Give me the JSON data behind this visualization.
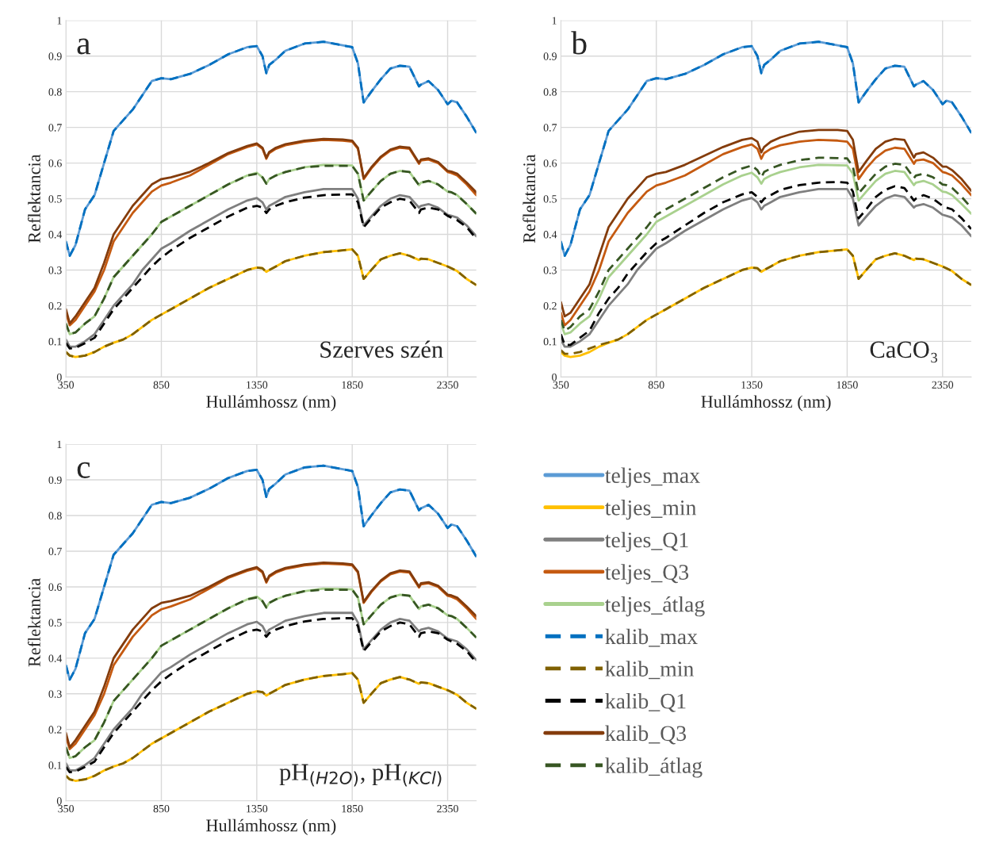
{
  "chart_data": [
    {
      "type": "line",
      "xlabel": "Hullámhossz (nm)",
      "ylabel": "Reflektancia",
      "annotations": [
        "a",
        "Szerves szén"
      ],
      "xlim": [
        350,
        2500
      ],
      "ylim": [
        0,
        1
      ],
      "xticks": [
        350,
        850,
        1350,
        1850,
        2350
      ],
      "yticks": [
        0,
        0.1,
        0.2,
        0.3,
        0.4,
        0.5,
        0.6,
        0.7,
        0.8,
        0.9,
        1
      ],
      "grid": true,
      "x": [
        350,
        370,
        400,
        450,
        500,
        550,
        600,
        650,
        700,
        750,
        800,
        850,
        900,
        1000,
        1100,
        1200,
        1300,
        1350,
        1380,
        1400,
        1415,
        1450,
        1500,
        1600,
        1700,
        1800,
        1850,
        1880,
        1910,
        1950,
        2000,
        2050,
        2100,
        2150,
        2200,
        2210,
        2250,
        2300,
        2350,
        2370,
        2400,
        2450,
        2500
      ],
      "series": [
        {
          "color": "#5b9bd5",
          "line_style": "solid",
          "values": [
            0.38,
            0.34,
            0.37,
            0.47,
            0.51,
            0.6,
            0.69,
            0.72,
            0.75,
            0.79,
            0.83,
            0.838,
            0.835,
            0.85,
            0.875,
            0.905,
            0.925,
            0.928,
            0.9,
            0.852,
            0.875,
            0.89,
            0.915,
            0.935,
            0.94,
            0.93,
            0.925,
            0.88,
            0.77,
            0.8,
            0.835,
            0.865,
            0.873,
            0.87,
            0.815,
            0.82,
            0.83,
            0.805,
            0.765,
            0.775,
            0.77,
            0.73,
            0.685
          ]
        },
        {
          "color": "#ffc000",
          "line_style": "solid",
          "values": [
            0.07,
            0.06,
            0.056,
            0.06,
            0.07,
            0.085,
            0.096,
            0.105,
            0.12,
            0.14,
            0.16,
            0.175,
            0.19,
            0.22,
            0.25,
            0.275,
            0.3,
            0.307,
            0.305,
            0.295,
            0.3,
            0.31,
            0.325,
            0.34,
            0.35,
            0.355,
            0.358,
            0.34,
            0.275,
            0.3,
            0.33,
            0.34,
            0.347,
            0.34,
            0.328,
            0.332,
            0.33,
            0.32,
            0.31,
            0.305,
            0.297,
            0.275,
            0.258
          ]
        },
        {
          "color": "#7f7f7f",
          "line_style": "solid",
          "values": [
            0.105,
            0.085,
            0.085,
            0.1,
            0.12,
            0.16,
            0.2,
            0.23,
            0.26,
            0.3,
            0.33,
            0.36,
            0.375,
            0.41,
            0.44,
            0.47,
            0.495,
            0.502,
            0.49,
            0.47,
            0.48,
            0.49,
            0.505,
            0.518,
            0.527,
            0.527,
            0.527,
            0.5,
            0.425,
            0.45,
            0.48,
            0.5,
            0.51,
            0.505,
            0.475,
            0.48,
            0.485,
            0.475,
            0.455,
            0.452,
            0.447,
            0.425,
            0.395
          ]
        },
        {
          "color": "#c55a11",
          "line_style": "solid",
          "values": [
            0.18,
            0.145,
            0.16,
            0.2,
            0.24,
            0.3,
            0.38,
            0.42,
            0.46,
            0.49,
            0.52,
            0.537,
            0.545,
            0.565,
            0.595,
            0.625,
            0.645,
            0.652,
            0.64,
            0.612,
            0.628,
            0.64,
            0.65,
            0.66,
            0.665,
            0.663,
            0.66,
            0.64,
            0.555,
            0.585,
            0.615,
            0.635,
            0.643,
            0.64,
            0.598,
            0.607,
            0.61,
            0.6,
            0.575,
            0.572,
            0.565,
            0.54,
            0.51
          ]
        },
        {
          "color": "#a9d18e",
          "line_style": "solid",
          "values": [
            0.15,
            0.12,
            0.125,
            0.15,
            0.17,
            0.22,
            0.28,
            0.31,
            0.34,
            0.37,
            0.4,
            0.435,
            0.45,
            0.48,
            0.51,
            0.54,
            0.565,
            0.573,
            0.56,
            0.542,
            0.555,
            0.565,
            0.575,
            0.588,
            0.595,
            0.594,
            0.593,
            0.57,
            0.495,
            0.52,
            0.55,
            0.57,
            0.578,
            0.575,
            0.538,
            0.545,
            0.55,
            0.54,
            0.52,
            0.518,
            0.51,
            0.485,
            0.458
          ]
        },
        {
          "color": "#0070c0",
          "line_style": "dashed",
          "values": [
            0.38,
            0.34,
            0.37,
            0.47,
            0.51,
            0.6,
            0.69,
            0.72,
            0.75,
            0.79,
            0.83,
            0.838,
            0.835,
            0.85,
            0.875,
            0.905,
            0.925,
            0.928,
            0.9,
            0.852,
            0.875,
            0.89,
            0.915,
            0.935,
            0.94,
            0.93,
            0.925,
            0.88,
            0.77,
            0.8,
            0.835,
            0.865,
            0.873,
            0.87,
            0.815,
            0.82,
            0.83,
            0.805,
            0.765,
            0.775,
            0.77,
            0.73,
            0.685
          ]
        },
        {
          "color": "#7f6000",
          "line_style": "dashed",
          "values": [
            0.07,
            0.06,
            0.056,
            0.06,
            0.07,
            0.085,
            0.096,
            0.105,
            0.12,
            0.14,
            0.16,
            0.175,
            0.19,
            0.22,
            0.25,
            0.275,
            0.3,
            0.307,
            0.305,
            0.295,
            0.3,
            0.31,
            0.325,
            0.34,
            0.35,
            0.355,
            0.358,
            0.34,
            0.275,
            0.3,
            0.33,
            0.34,
            0.347,
            0.34,
            0.328,
            0.332,
            0.33,
            0.32,
            0.31,
            0.305,
            0.297,
            0.275,
            0.258
          ]
        },
        {
          "color": "#000000",
          "line_style": "dashed",
          "values": [
            0.095,
            0.08,
            0.082,
            0.095,
            0.11,
            0.15,
            0.19,
            0.22,
            0.25,
            0.28,
            0.31,
            0.335,
            0.355,
            0.39,
            0.42,
            0.45,
            0.475,
            0.48,
            0.475,
            0.46,
            0.47,
            0.48,
            0.49,
            0.503,
            0.51,
            0.512,
            0.512,
            0.49,
            0.42,
            0.445,
            0.475,
            0.49,
            0.5,
            0.495,
            0.46,
            0.47,
            0.475,
            0.47,
            0.452,
            0.447,
            0.44,
            0.42,
            0.388
          ]
        },
        {
          "color": "#843c0c",
          "line_style": "solid",
          "values": [
            0.19,
            0.15,
            0.17,
            0.21,
            0.25,
            0.32,
            0.4,
            0.44,
            0.48,
            0.51,
            0.54,
            0.555,
            0.56,
            0.575,
            0.6,
            0.628,
            0.648,
            0.655,
            0.643,
            0.615,
            0.631,
            0.643,
            0.653,
            0.663,
            0.668,
            0.666,
            0.663,
            0.643,
            0.558,
            0.588,
            0.618,
            0.638,
            0.646,
            0.643,
            0.601,
            0.61,
            0.613,
            0.603,
            0.578,
            0.576,
            0.57,
            0.545,
            0.518
          ]
        },
        {
          "color": "#375623",
          "line_style": "dashed",
          "values": [
            0.15,
            0.12,
            0.125,
            0.15,
            0.17,
            0.22,
            0.28,
            0.31,
            0.34,
            0.37,
            0.4,
            0.435,
            0.45,
            0.48,
            0.51,
            0.54,
            0.565,
            0.57,
            0.56,
            0.542,
            0.555,
            0.565,
            0.575,
            0.588,
            0.592,
            0.592,
            0.592,
            0.57,
            0.495,
            0.52,
            0.55,
            0.57,
            0.578,
            0.575,
            0.538,
            0.545,
            0.55,
            0.54,
            0.52,
            0.518,
            0.51,
            0.485,
            0.458
          ]
        }
      ]
    },
    {
      "type": "line",
      "xlabel": "Hullámhossz (nm)",
      "ylabel": "Reflektancia",
      "annotations": [
        "b",
        "CaCO₃"
      ],
      "xlim": [
        350,
        2500
      ],
      "ylim": [
        0,
        1
      ],
      "xticks": [
        350,
        850,
        1350,
        1850,
        2350
      ],
      "yticks": [
        0,
        0.1,
        0.2,
        0.3,
        0.4,
        0.5,
        0.6,
        0.7,
        0.8,
        0.9,
        1
      ],
      "grid": true,
      "x": [
        350,
        370,
        400,
        450,
        500,
        550,
        600,
        650,
        700,
        750,
        800,
        850,
        900,
        1000,
        1100,
        1200,
        1300,
        1350,
        1380,
        1400,
        1415,
        1450,
        1500,
        1600,
        1700,
        1800,
        1850,
        1880,
        1910,
        1950,
        2000,
        2050,
        2100,
        2150,
        2200,
        2210,
        2250,
        2300,
        2350,
        2370,
        2400,
        2450,
        2500
      ],
      "series": [
        {
          "color": "#5b9bd5",
          "line_style": "solid",
          "values": [
            0.38,
            0.34,
            0.37,
            0.47,
            0.51,
            0.6,
            0.69,
            0.72,
            0.75,
            0.79,
            0.83,
            0.838,
            0.835,
            0.85,
            0.875,
            0.905,
            0.925,
            0.928,
            0.9,
            0.852,
            0.875,
            0.89,
            0.915,
            0.935,
            0.94,
            0.93,
            0.925,
            0.88,
            0.77,
            0.8,
            0.835,
            0.865,
            0.873,
            0.87,
            0.815,
            0.82,
            0.83,
            0.805,
            0.765,
            0.775,
            0.77,
            0.73,
            0.685
          ]
        },
        {
          "color": "#ffc000",
          "line_style": "solid",
          "values": [
            0.07,
            0.06,
            0.056,
            0.06,
            0.07,
            0.085,
            0.096,
            0.105,
            0.12,
            0.14,
            0.16,
            0.175,
            0.19,
            0.22,
            0.25,
            0.275,
            0.3,
            0.307,
            0.305,
            0.295,
            0.3,
            0.31,
            0.325,
            0.34,
            0.35,
            0.355,
            0.358,
            0.34,
            0.275,
            0.3,
            0.33,
            0.34,
            0.347,
            0.34,
            0.328,
            0.332,
            0.33,
            0.32,
            0.31,
            0.305,
            0.297,
            0.275,
            0.258
          ]
        },
        {
          "color": "#7f7f7f",
          "line_style": "solid",
          "values": [
            0.105,
            0.085,
            0.085,
            0.1,
            0.12,
            0.16,
            0.2,
            0.23,
            0.26,
            0.3,
            0.33,
            0.36,
            0.375,
            0.41,
            0.44,
            0.47,
            0.495,
            0.502,
            0.49,
            0.47,
            0.48,
            0.49,
            0.505,
            0.518,
            0.527,
            0.527,
            0.527,
            0.5,
            0.425,
            0.45,
            0.48,
            0.5,
            0.51,
            0.505,
            0.475,
            0.48,
            0.485,
            0.475,
            0.455,
            0.452,
            0.447,
            0.425,
            0.395
          ]
        },
        {
          "color": "#c55a11",
          "line_style": "solid",
          "values": [
            0.18,
            0.145,
            0.16,
            0.2,
            0.24,
            0.3,
            0.38,
            0.42,
            0.46,
            0.49,
            0.52,
            0.537,
            0.545,
            0.565,
            0.595,
            0.625,
            0.645,
            0.652,
            0.64,
            0.612,
            0.628,
            0.64,
            0.65,
            0.66,
            0.665,
            0.663,
            0.66,
            0.64,
            0.555,
            0.585,
            0.615,
            0.635,
            0.643,
            0.64,
            0.598,
            0.607,
            0.61,
            0.6,
            0.575,
            0.572,
            0.565,
            0.54,
            0.51
          ]
        },
        {
          "color": "#a9d18e",
          "line_style": "solid",
          "values": [
            0.15,
            0.12,
            0.125,
            0.15,
            0.17,
            0.22,
            0.28,
            0.31,
            0.34,
            0.37,
            0.4,
            0.435,
            0.45,
            0.48,
            0.51,
            0.54,
            0.565,
            0.573,
            0.56,
            0.542,
            0.555,
            0.565,
            0.575,
            0.588,
            0.595,
            0.594,
            0.593,
            0.57,
            0.495,
            0.52,
            0.55,
            0.57,
            0.578,
            0.575,
            0.538,
            0.545,
            0.55,
            0.54,
            0.52,
            0.518,
            0.51,
            0.485,
            0.458
          ]
        },
        {
          "color": "#0070c0",
          "line_style": "dashed",
          "values": [
            0.38,
            0.34,
            0.37,
            0.47,
            0.51,
            0.6,
            0.69,
            0.72,
            0.75,
            0.79,
            0.83,
            0.838,
            0.835,
            0.85,
            0.875,
            0.905,
            0.925,
            0.928,
            0.9,
            0.852,
            0.875,
            0.89,
            0.915,
            0.935,
            0.94,
            0.93,
            0.925,
            0.88,
            0.77,
            0.8,
            0.835,
            0.865,
            0.873,
            0.87,
            0.815,
            0.82,
            0.83,
            0.805,
            0.765,
            0.775,
            0.77,
            0.73,
            0.685
          ]
        },
        {
          "color": "#7f6000",
          "line_style": "dashed",
          "values": [
            0.075,
            0.065,
            0.065,
            0.07,
            0.08,
            0.09,
            0.097,
            0.105,
            0.12,
            0.14,
            0.16,
            0.175,
            0.19,
            0.22,
            0.25,
            0.275,
            0.3,
            0.307,
            0.305,
            0.295,
            0.3,
            0.31,
            0.325,
            0.34,
            0.35,
            0.355,
            0.358,
            0.34,
            0.275,
            0.3,
            0.33,
            0.34,
            0.347,
            0.34,
            0.328,
            0.332,
            0.33,
            0.32,
            0.31,
            0.305,
            0.297,
            0.275,
            0.258
          ]
        },
        {
          "color": "#000000",
          "line_style": "dashed",
          "values": [
            0.12,
            0.09,
            0.09,
            0.11,
            0.13,
            0.18,
            0.22,
            0.25,
            0.29,
            0.32,
            0.35,
            0.375,
            0.39,
            0.425,
            0.46,
            0.49,
            0.512,
            0.518,
            0.505,
            0.49,
            0.5,
            0.51,
            0.525,
            0.538,
            0.545,
            0.547,
            0.545,
            0.52,
            0.445,
            0.47,
            0.505,
            0.525,
            0.535,
            0.53,
            0.495,
            0.5,
            0.51,
            0.5,
            0.48,
            0.475,
            0.47,
            0.445,
            0.415
          ]
        },
        {
          "color": "#843c0c",
          "line_style": "solid",
          "values": [
            0.21,
            0.17,
            0.18,
            0.22,
            0.26,
            0.34,
            0.42,
            0.46,
            0.5,
            0.53,
            0.56,
            0.57,
            0.575,
            0.595,
            0.62,
            0.645,
            0.665,
            0.67,
            0.66,
            0.63,
            0.645,
            0.66,
            0.672,
            0.688,
            0.693,
            0.693,
            0.69,
            0.665,
            0.575,
            0.605,
            0.64,
            0.66,
            0.668,
            0.665,
            0.615,
            0.625,
            0.63,
            0.615,
            0.59,
            0.59,
            0.58,
            0.555,
            0.522
          ]
        },
        {
          "color": "#375623",
          "line_style": "dashed",
          "values": [
            0.16,
            0.13,
            0.14,
            0.17,
            0.19,
            0.24,
            0.3,
            0.33,
            0.36,
            0.39,
            0.42,
            0.455,
            0.47,
            0.5,
            0.53,
            0.56,
            0.585,
            0.593,
            0.58,
            0.56,
            0.575,
            0.585,
            0.595,
            0.608,
            0.615,
            0.614,
            0.613,
            0.59,
            0.515,
            0.54,
            0.57,
            0.59,
            0.598,
            0.595,
            0.558,
            0.565,
            0.57,
            0.56,
            0.54,
            0.538,
            0.53,
            0.505,
            0.475
          ]
        }
      ]
    },
    {
      "type": "line",
      "xlabel": "Hullámhossz (nm)",
      "ylabel": "Reflektancia",
      "annotations": [
        "c",
        "pH$_{(H2O)}$, pH$_{(KCl)}$"
      ],
      "xlim": [
        350,
        2500
      ],
      "ylim": [
        0,
        1
      ],
      "xticks": [
        350,
        850,
        1350,
        1850,
        2350
      ],
      "yticks": [
        0,
        0.1,
        0.2,
        0.3,
        0.4,
        0.5,
        0.6,
        0.7,
        0.8,
        0.9,
        1
      ],
      "grid": true,
      "legend": "right",
      "x": [
        350,
        370,
        400,
        450,
        500,
        550,
        600,
        650,
        700,
        750,
        800,
        850,
        900,
        1000,
        1100,
        1200,
        1300,
        1350,
        1380,
        1400,
        1415,
        1450,
        1500,
        1600,
        1700,
        1800,
        1850,
        1880,
        1910,
        1950,
        2000,
        2050,
        2100,
        2150,
        2200,
        2210,
        2250,
        2300,
        2350,
        2370,
        2400,
        2450,
        2500
      ],
      "series": [
        {
          "name": "teljes_max",
          "color": "#5b9bd5",
          "line_style": "solid",
          "values": [
            0.38,
            0.34,
            0.37,
            0.47,
            0.51,
            0.6,
            0.69,
            0.72,
            0.75,
            0.79,
            0.83,
            0.838,
            0.835,
            0.85,
            0.875,
            0.905,
            0.925,
            0.928,
            0.9,
            0.852,
            0.875,
            0.89,
            0.915,
            0.935,
            0.94,
            0.93,
            0.925,
            0.88,
            0.77,
            0.8,
            0.835,
            0.865,
            0.873,
            0.87,
            0.815,
            0.82,
            0.83,
            0.805,
            0.765,
            0.775,
            0.77,
            0.73,
            0.685
          ]
        },
        {
          "name": "teljes_min",
          "color": "#ffc000",
          "line_style": "solid",
          "values": [
            0.07,
            0.06,
            0.056,
            0.06,
            0.07,
            0.085,
            0.096,
            0.105,
            0.12,
            0.14,
            0.16,
            0.175,
            0.19,
            0.22,
            0.25,
            0.275,
            0.3,
            0.307,
            0.305,
            0.295,
            0.3,
            0.31,
            0.325,
            0.34,
            0.35,
            0.355,
            0.358,
            0.34,
            0.275,
            0.3,
            0.33,
            0.34,
            0.347,
            0.34,
            0.328,
            0.332,
            0.33,
            0.32,
            0.31,
            0.305,
            0.297,
            0.275,
            0.258
          ]
        },
        {
          "name": "teljes_Q1",
          "color": "#7f7f7f",
          "line_style": "solid",
          "values": [
            0.105,
            0.085,
            0.085,
            0.1,
            0.12,
            0.16,
            0.2,
            0.23,
            0.26,
            0.3,
            0.33,
            0.36,
            0.375,
            0.41,
            0.44,
            0.47,
            0.495,
            0.502,
            0.49,
            0.47,
            0.48,
            0.49,
            0.505,
            0.518,
            0.527,
            0.527,
            0.527,
            0.5,
            0.425,
            0.45,
            0.48,
            0.5,
            0.51,
            0.505,
            0.475,
            0.48,
            0.485,
            0.475,
            0.455,
            0.452,
            0.447,
            0.425,
            0.395
          ]
        },
        {
          "name": "teljes_Q3",
          "color": "#c55a11",
          "line_style": "solid",
          "values": [
            0.18,
            0.145,
            0.16,
            0.2,
            0.24,
            0.3,
            0.38,
            0.42,
            0.46,
            0.49,
            0.52,
            0.537,
            0.545,
            0.565,
            0.595,
            0.625,
            0.645,
            0.652,
            0.64,
            0.612,
            0.628,
            0.64,
            0.65,
            0.66,
            0.665,
            0.663,
            0.66,
            0.64,
            0.555,
            0.585,
            0.615,
            0.635,
            0.643,
            0.64,
            0.598,
            0.607,
            0.61,
            0.6,
            0.575,
            0.572,
            0.565,
            0.54,
            0.51
          ]
        },
        {
          "name": "teljes_átlag",
          "color": "#a9d18e",
          "line_style": "solid",
          "values": [
            0.15,
            0.12,
            0.125,
            0.15,
            0.17,
            0.22,
            0.28,
            0.31,
            0.34,
            0.37,
            0.4,
            0.435,
            0.45,
            0.48,
            0.51,
            0.54,
            0.565,
            0.573,
            0.56,
            0.542,
            0.555,
            0.565,
            0.575,
            0.588,
            0.595,
            0.594,
            0.593,
            0.57,
            0.495,
            0.52,
            0.55,
            0.57,
            0.578,
            0.575,
            0.538,
            0.545,
            0.55,
            0.54,
            0.52,
            0.518,
            0.51,
            0.485,
            0.458
          ]
        },
        {
          "name": "kalib_max",
          "color": "#0070c0",
          "line_style": "dashed",
          "values": [
            0.38,
            0.34,
            0.37,
            0.47,
            0.51,
            0.6,
            0.69,
            0.72,
            0.75,
            0.79,
            0.83,
            0.838,
            0.835,
            0.85,
            0.875,
            0.905,
            0.925,
            0.928,
            0.9,
            0.852,
            0.875,
            0.89,
            0.915,
            0.935,
            0.94,
            0.93,
            0.925,
            0.88,
            0.77,
            0.8,
            0.835,
            0.865,
            0.873,
            0.87,
            0.815,
            0.82,
            0.83,
            0.805,
            0.765,
            0.775,
            0.77,
            0.73,
            0.685
          ]
        },
        {
          "name": "kalib_min",
          "color": "#7f6000",
          "line_style": "dashed",
          "values": [
            0.07,
            0.06,
            0.056,
            0.06,
            0.07,
            0.085,
            0.096,
            0.105,
            0.12,
            0.14,
            0.16,
            0.175,
            0.19,
            0.22,
            0.25,
            0.275,
            0.3,
            0.307,
            0.305,
            0.295,
            0.3,
            0.31,
            0.325,
            0.34,
            0.35,
            0.355,
            0.358,
            0.34,
            0.275,
            0.3,
            0.33,
            0.34,
            0.347,
            0.34,
            0.328,
            0.332,
            0.33,
            0.32,
            0.31,
            0.305,
            0.297,
            0.275,
            0.258
          ]
        },
        {
          "name": "kalib_Q1",
          "color": "#000000",
          "line_style": "dashed",
          "values": [
            0.095,
            0.08,
            0.082,
            0.095,
            0.11,
            0.15,
            0.19,
            0.22,
            0.25,
            0.28,
            0.31,
            0.335,
            0.355,
            0.39,
            0.42,
            0.45,
            0.475,
            0.48,
            0.475,
            0.46,
            0.47,
            0.48,
            0.49,
            0.503,
            0.51,
            0.512,
            0.512,
            0.49,
            0.42,
            0.445,
            0.475,
            0.49,
            0.5,
            0.495,
            0.46,
            0.47,
            0.475,
            0.47,
            0.452,
            0.447,
            0.44,
            0.42,
            0.388
          ]
        },
        {
          "name": "kalib_Q3",
          "color": "#843c0c",
          "line_style": "solid",
          "values": [
            0.19,
            0.15,
            0.17,
            0.21,
            0.25,
            0.32,
            0.4,
            0.44,
            0.48,
            0.51,
            0.54,
            0.555,
            0.56,
            0.575,
            0.6,
            0.628,
            0.648,
            0.655,
            0.643,
            0.615,
            0.631,
            0.643,
            0.653,
            0.663,
            0.668,
            0.666,
            0.663,
            0.643,
            0.558,
            0.588,
            0.618,
            0.638,
            0.646,
            0.643,
            0.601,
            0.61,
            0.613,
            0.603,
            0.578,
            0.576,
            0.57,
            0.545,
            0.518
          ]
        },
        {
          "name": "kalib_átlag",
          "color": "#375623",
          "line_style": "dashed",
          "values": [
            0.15,
            0.12,
            0.125,
            0.15,
            0.17,
            0.22,
            0.28,
            0.31,
            0.34,
            0.37,
            0.4,
            0.435,
            0.45,
            0.48,
            0.51,
            0.54,
            0.565,
            0.57,
            0.56,
            0.542,
            0.555,
            0.565,
            0.575,
            0.588,
            0.592,
            0.592,
            0.592,
            0.57,
            0.495,
            0.52,
            0.55,
            0.57,
            0.578,
            0.575,
            0.538,
            0.545,
            0.55,
            0.54,
            0.52,
            0.518,
            0.51,
            0.485,
            0.458
          ]
        }
      ]
    }
  ]
}
